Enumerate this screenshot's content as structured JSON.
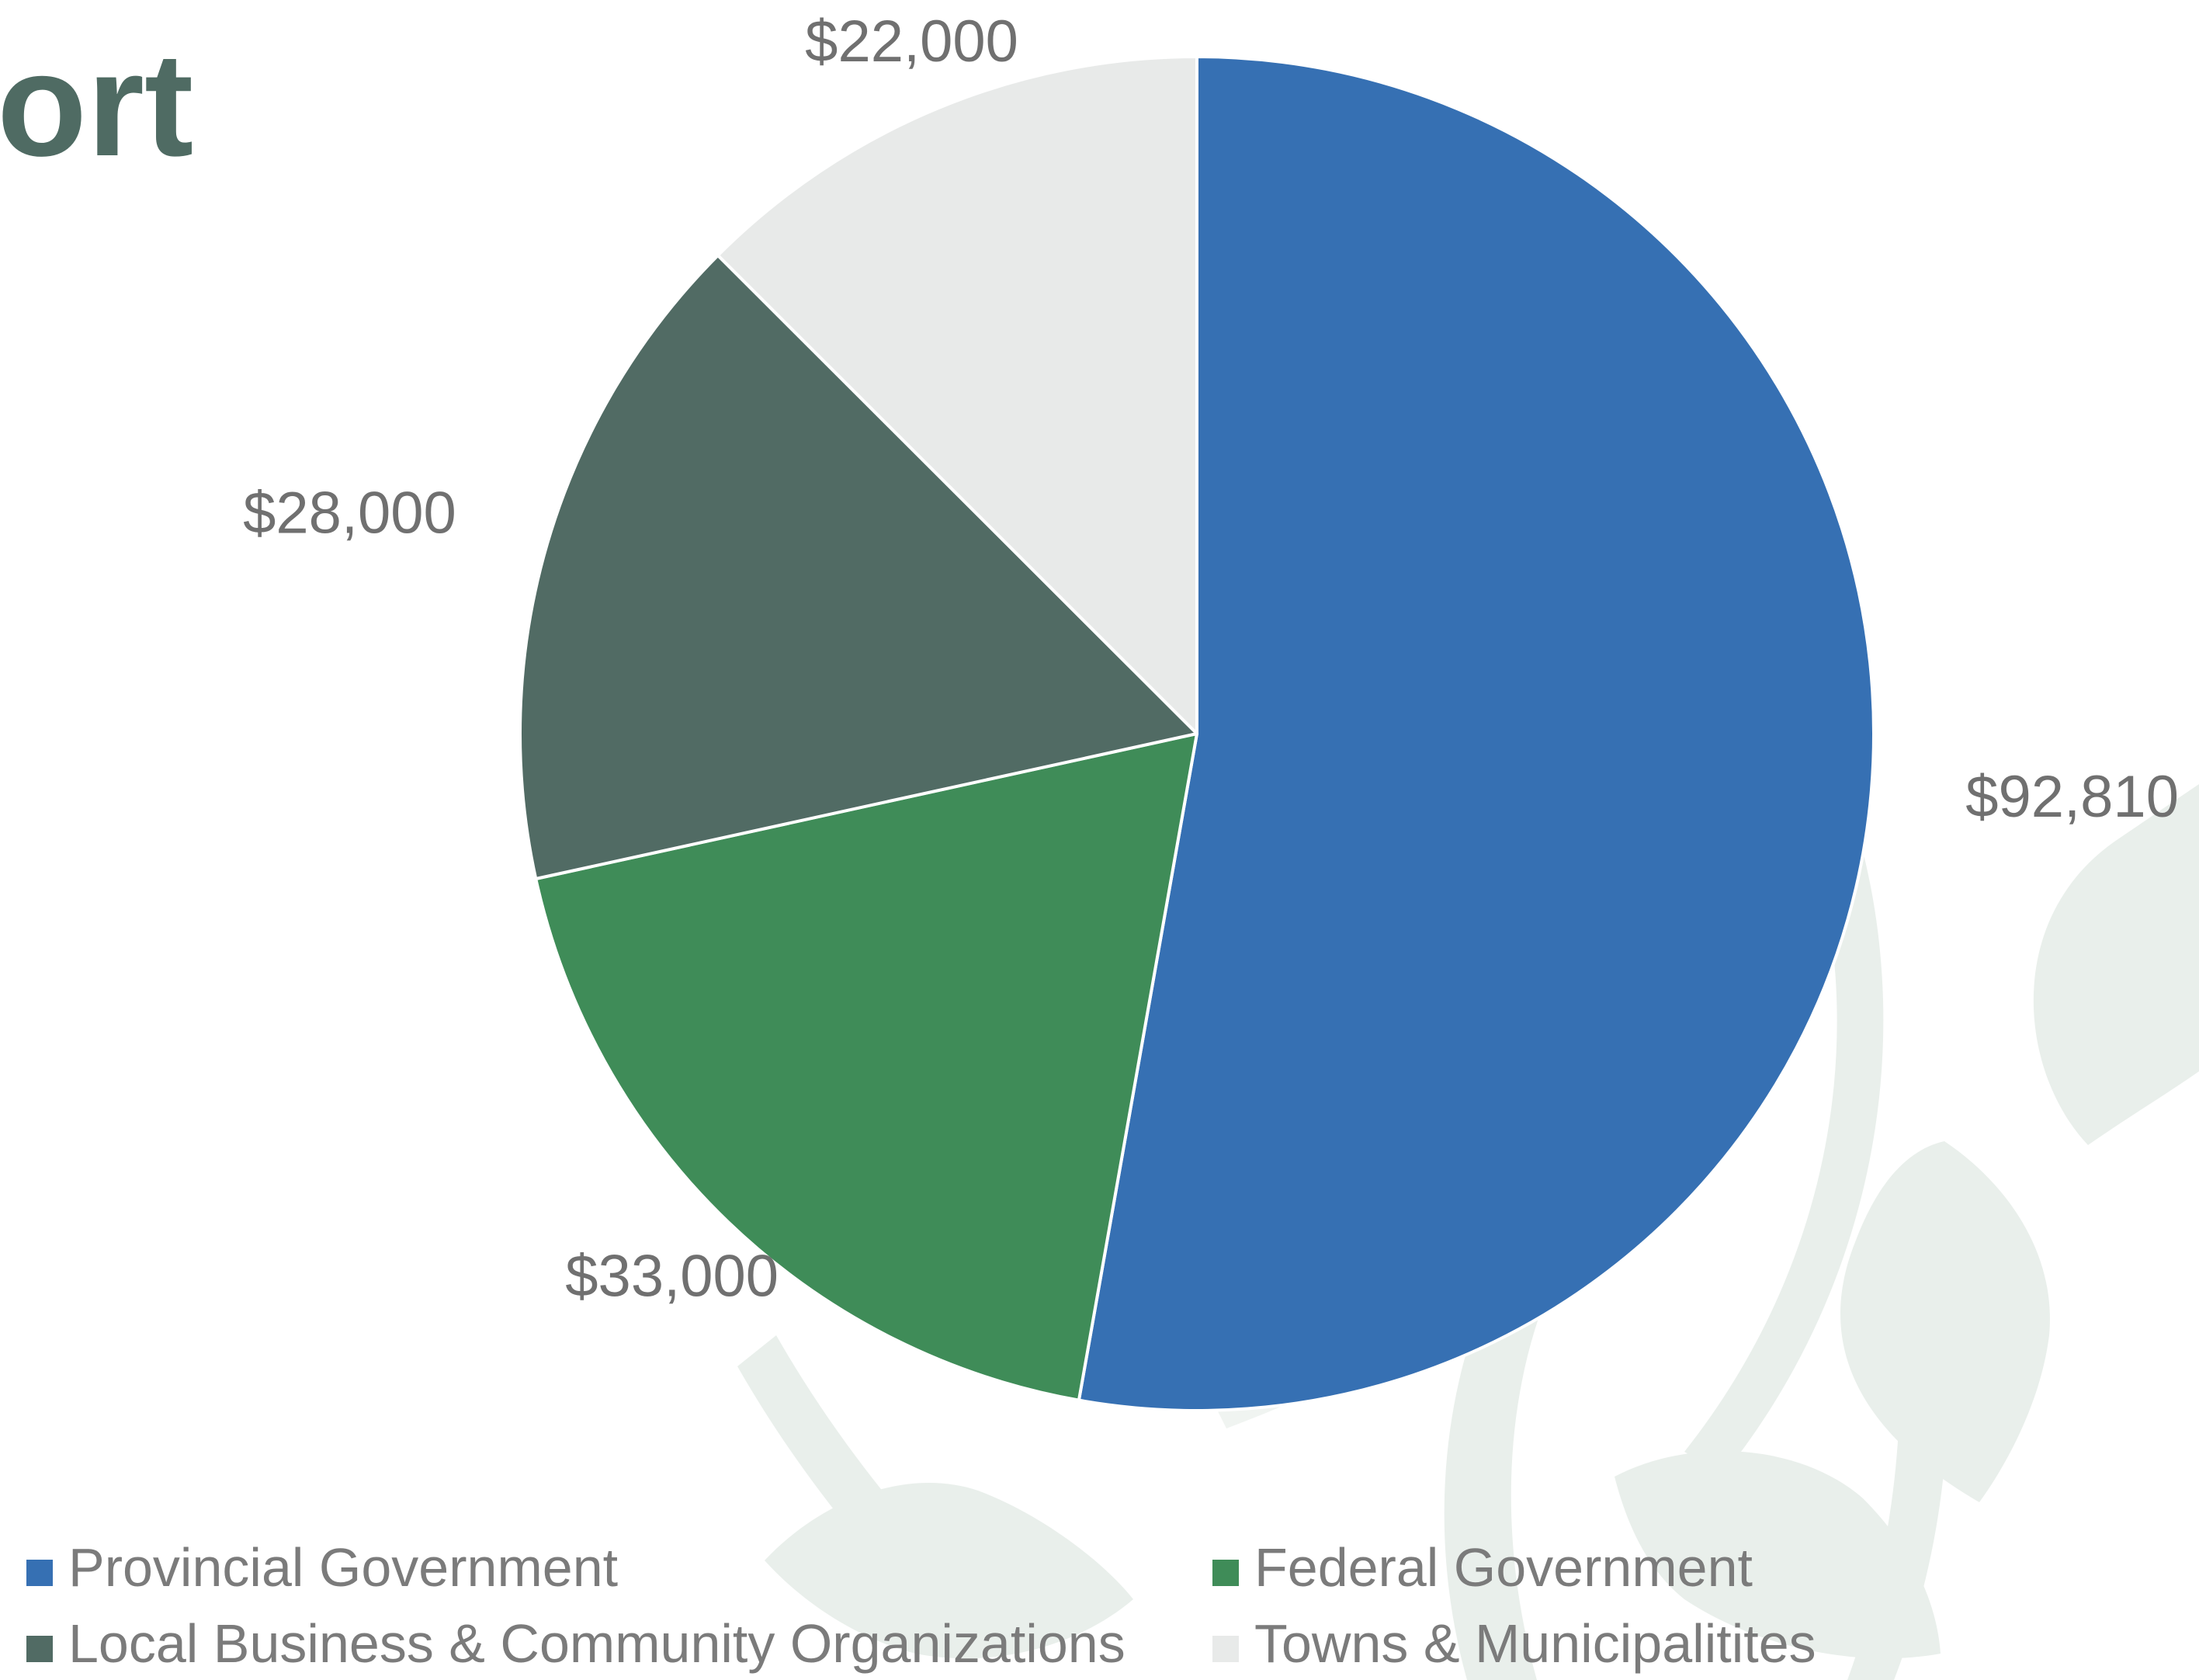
{
  "slide": {
    "title_fragment": "ort",
    "title_color": "#4f6b63",
    "background_motif": "leaf-icons",
    "motif_color": "#e9efeb"
  },
  "chart_data": {
    "type": "pie",
    "title": "",
    "start_angle_deg": 0,
    "direction": "clockwise",
    "slices": [
      {
        "name": "Provincial Government",
        "value": 92810,
        "label": "$92,810",
        "color": "#3670b3"
      },
      {
        "name": "Federal Government",
        "value": 33000,
        "label": "$33,000",
        "color": "#3f8c58"
      },
      {
        "name": "Local Business & Community Organizations",
        "value": 28000,
        "label": "$28,000",
        "color": "#516b64"
      },
      {
        "name": "Towns & Municipalitites",
        "value": 22000,
        "label": "$22,000",
        "color": "#e8eae9"
      }
    ],
    "label_color": "#707070",
    "legend_position": "bottom",
    "legend_text_color": "#7b7b7b"
  }
}
